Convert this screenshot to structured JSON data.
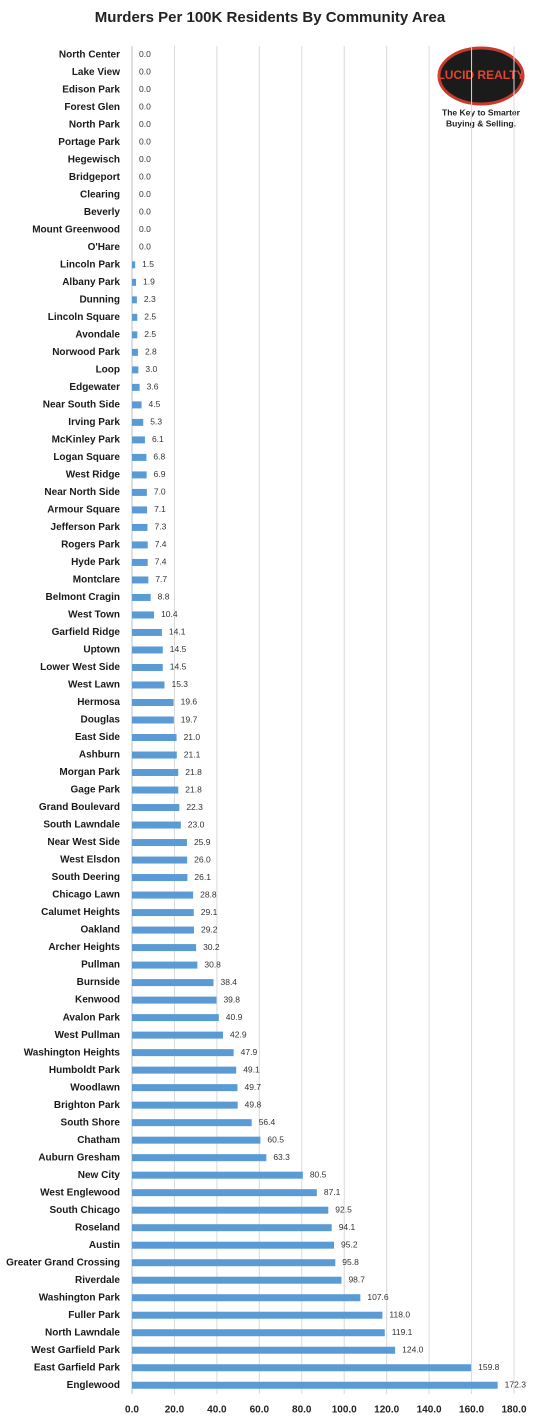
{
  "chart_data": {
    "type": "bar",
    "orientation": "horizontal",
    "title": "Murders Per 100K Residents By Community  Area",
    "logo": {
      "name": "LUCID REALTY",
      "tagline_1": "The Key to Smarter",
      "tagline_2": "Buying & Selling."
    },
    "categories": [
      "North Center",
      "Lake View",
      "Edison Park",
      "Forest Glen",
      "North Park",
      "Portage Park",
      "Hegewisch",
      "Bridgeport",
      "Clearing",
      "Beverly",
      "Mount Greenwood",
      "O'Hare",
      "Lincoln Park",
      "Albany Park",
      "Dunning",
      "Lincoln Square",
      "Avondale",
      "Norwood Park",
      "Loop",
      "Edgewater",
      "Near South Side",
      "Irving Park",
      "McKinley Park",
      "Logan Square",
      "West Ridge",
      "Near North Side",
      "Armour Square",
      "Jefferson Park",
      "Rogers Park",
      "Hyde Park",
      "Montclare",
      "Belmont Cragin",
      "West Town",
      "Garfield Ridge",
      "Uptown",
      "Lower West Side",
      "West Lawn",
      "Hermosa",
      "Douglas",
      "East Side",
      "Ashburn",
      "Morgan Park",
      "Gage Park",
      "Grand Boulevard",
      "South Lawndale",
      "Near West Side",
      "West Elsdon",
      "South Deering",
      "Chicago Lawn",
      "Calumet Heights",
      "Oakland",
      "Archer Heights",
      "Pullman",
      "Burnside",
      "Kenwood",
      "Avalon Park",
      "West Pullman",
      "Washington Heights",
      "Humboldt Park",
      "Woodlawn",
      "Brighton Park",
      "South Shore",
      "Chatham",
      "Auburn Gresham",
      "New City",
      "West Englewood",
      "South Chicago",
      "Roseland",
      "Austin",
      "Greater Grand Crossing",
      "Riverdale",
      "Washington Park",
      "Fuller Park",
      "North Lawndale",
      "West Garfield Park",
      "East Garfield Park",
      "Englewood"
    ],
    "values": [
      0,
      0,
      0,
      0,
      0,
      0,
      0,
      0,
      0,
      0,
      0,
      0,
      1.5,
      1.9,
      2.3,
      2.5,
      2.5,
      2.8,
      3.0,
      3.6,
      4.5,
      5.3,
      6.1,
      6.8,
      6.9,
      7.0,
      7.1,
      7.3,
      7.4,
      7.4,
      7.7,
      8.8,
      10.4,
      14.1,
      14.5,
      14.5,
      15.3,
      19.6,
      19.7,
      21.0,
      21.1,
      21.8,
      21.8,
      22.3,
      23.0,
      25.9,
      26.0,
      26.1,
      28.8,
      29.1,
      29.2,
      30.2,
      30.8,
      38.4,
      39.8,
      40.9,
      42.9,
      47.9,
      49.1,
      49.7,
      49.8,
      56.4,
      60.5,
      63.3,
      80.5,
      87.1,
      92.5,
      94.1,
      95.2,
      95.8,
      98.7,
      107.6,
      118.0,
      119.1,
      124.0,
      159.8,
      172.3
    ],
    "value_labels": [
      "0.0",
      "0.0",
      "0.0",
      "0.0",
      "0.0",
      "0.0",
      "0.0",
      "0.0",
      "0.0",
      "0.0",
      "0.0",
      "0.0",
      "1.5",
      "1.9",
      "2.3",
      "2.5",
      "2.5",
      "2.8",
      "3.0",
      "3.6",
      "4.5",
      "5.3",
      "6.1",
      "6.8",
      "6.9",
      "7.0",
      "7.1",
      "7.3",
      "7.4",
      "7.4",
      "7.7",
      "8.8",
      "10.4",
      "14.1",
      "14.5",
      "14.5",
      "15.3",
      "19.6",
      "19.7",
      "21.0",
      "21.1",
      "21.8",
      "21.8",
      "22.3",
      "23.0",
      "25.9",
      "26.0",
      "26.1",
      "28.8",
      "29.1",
      "29.2",
      "30.2",
      "30.8",
      "38.4",
      "39.8",
      "40.9",
      "42.9",
      "47.9",
      "49.1",
      "49.7",
      "49.8",
      "56.4",
      "60.5",
      "63.3",
      "80.5",
      "87.1",
      "92.5",
      "94.1",
      "95.2",
      "95.8",
      "98.7",
      "107.6",
      "118.0",
      "119.1",
      "124.0",
      "159.8",
      "172.3"
    ],
    "color": "#5b9bd5",
    "xlim": [
      0,
      180
    ],
    "xticks": [
      {
        "value": 0,
        "label": "0.0"
      },
      {
        "value": 20,
        "label": "20.0"
      },
      {
        "value": 40,
        "label": "40.0"
      },
      {
        "value": 60,
        "label": "60.0"
      },
      {
        "value": 80,
        "label": "80.0"
      },
      {
        "value": 100,
        "label": "100.0"
      },
      {
        "value": 120,
        "label": "120.0"
      },
      {
        "value": 140,
        "label": "140.0"
      },
      {
        "value": 160,
        "label": "160.0"
      },
      {
        "value": 180,
        "label": "180.0"
      }
    ],
    "grid": true
  }
}
